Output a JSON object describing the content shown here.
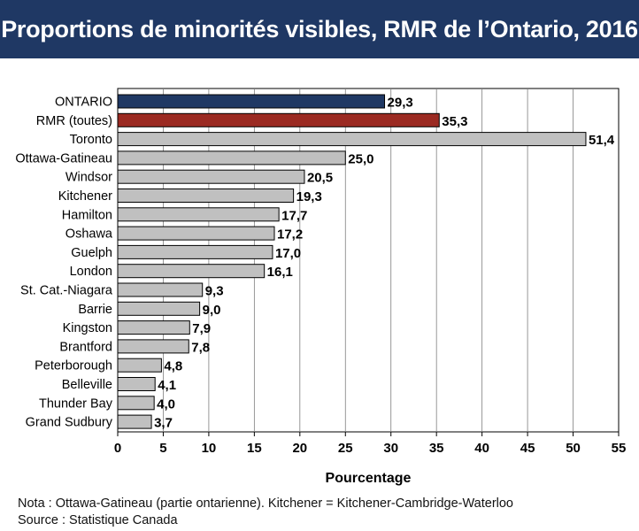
{
  "header": {
    "title": "Proportions de minorités visibles, RMR de l’Ontario, 2016"
  },
  "colors": {
    "title_background": "#1f3864",
    "ontario_bar": "#1f3864",
    "all_cma_bar": "#9b2a22",
    "default_bar": "#c0c0c0",
    "bar_outline": "#000000"
  },
  "chart_data": {
    "type": "bar",
    "orientation": "horizontal",
    "categories": [
      "ONTARIO",
      "RMR (toutes)",
      "Toronto",
      "Ottawa-Gatineau",
      "Windsor",
      "Kitchener",
      "Hamilton",
      "Oshawa",
      "Guelph",
      "London",
      "St. Cat.-Niagara",
      "Barrie",
      "Kingston",
      "Brantford",
      "Peterborough",
      "Belleville",
      "Thunder Bay",
      "Grand Sudbury"
    ],
    "values": [
      29.3,
      35.3,
      51.4,
      25.0,
      20.5,
      19.3,
      17.7,
      17.2,
      17.0,
      16.1,
      9.3,
      9.0,
      7.9,
      7.8,
      4.8,
      4.1,
      4.0,
      3.7
    ],
    "value_labels": [
      "29,3",
      "35,3",
      "51,4",
      "25,0",
      "20,5",
      "19,3",
      "17,7",
      "17,2",
      "17,0",
      "16,1",
      "9,3",
      "9,0",
      "7,9",
      "7,8",
      "4,8",
      "4,1",
      "4,0",
      "3,7"
    ],
    "bar_color_keys": [
      "ontario_bar",
      "all_cma_bar",
      "default_bar",
      "default_bar",
      "default_bar",
      "default_bar",
      "default_bar",
      "default_bar",
      "default_bar",
      "default_bar",
      "default_bar",
      "default_bar",
      "default_bar",
      "default_bar",
      "default_bar",
      "default_bar",
      "default_bar",
      "default_bar"
    ],
    "xlabel": "Pourcentage",
    "ylabel": "",
    "xlim": [
      0,
      55
    ],
    "xticks": [
      0,
      5,
      10,
      15,
      20,
      25,
      30,
      35,
      40,
      45,
      50,
      55
    ],
    "grid": "vertical",
    "legend": "none"
  },
  "notes": {
    "note": "Nota : Ottawa-Gatineau (partie ontarienne). Kitchener = Kitchener-Cambridge-Waterloo",
    "source": "Source : Statistique Canada"
  }
}
